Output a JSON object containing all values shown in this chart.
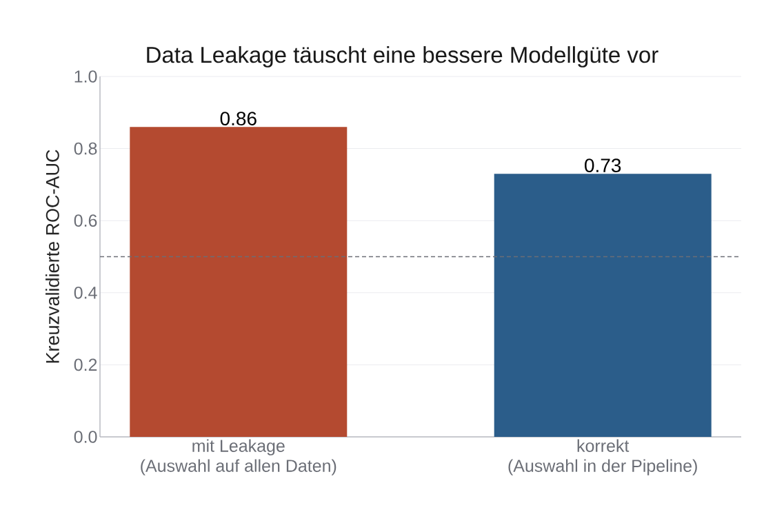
{
  "chart_data": {
    "type": "bar",
    "title": "Data Leakage täuscht eine bessere Modellgüte vor",
    "ylabel": "Kreuzvalidierte ROC-AUC",
    "categories": [
      "mit Leakage\n(Auswahl auf allen Daten)",
      "korrekt\n(Auswahl in der Pipeline)"
    ],
    "values": [
      0.86,
      0.73
    ],
    "colors": [
      "#b44a30",
      "#2b5d8a"
    ],
    "ylim": [
      0,
      1
    ],
    "yticks": [
      {
        "value": 0,
        "label": "0.0"
      },
      0.2,
      0.4,
      0.6,
      0.8,
      {
        "value": 1,
        "label": "1.0"
      }
    ],
    "grid": "y",
    "data_labels": true,
    "ref_lines": [
      {
        "axis": "y",
        "value": 0.5,
        "color": "#6b6e76",
        "line_style": "dashed"
      }
    ]
  }
}
